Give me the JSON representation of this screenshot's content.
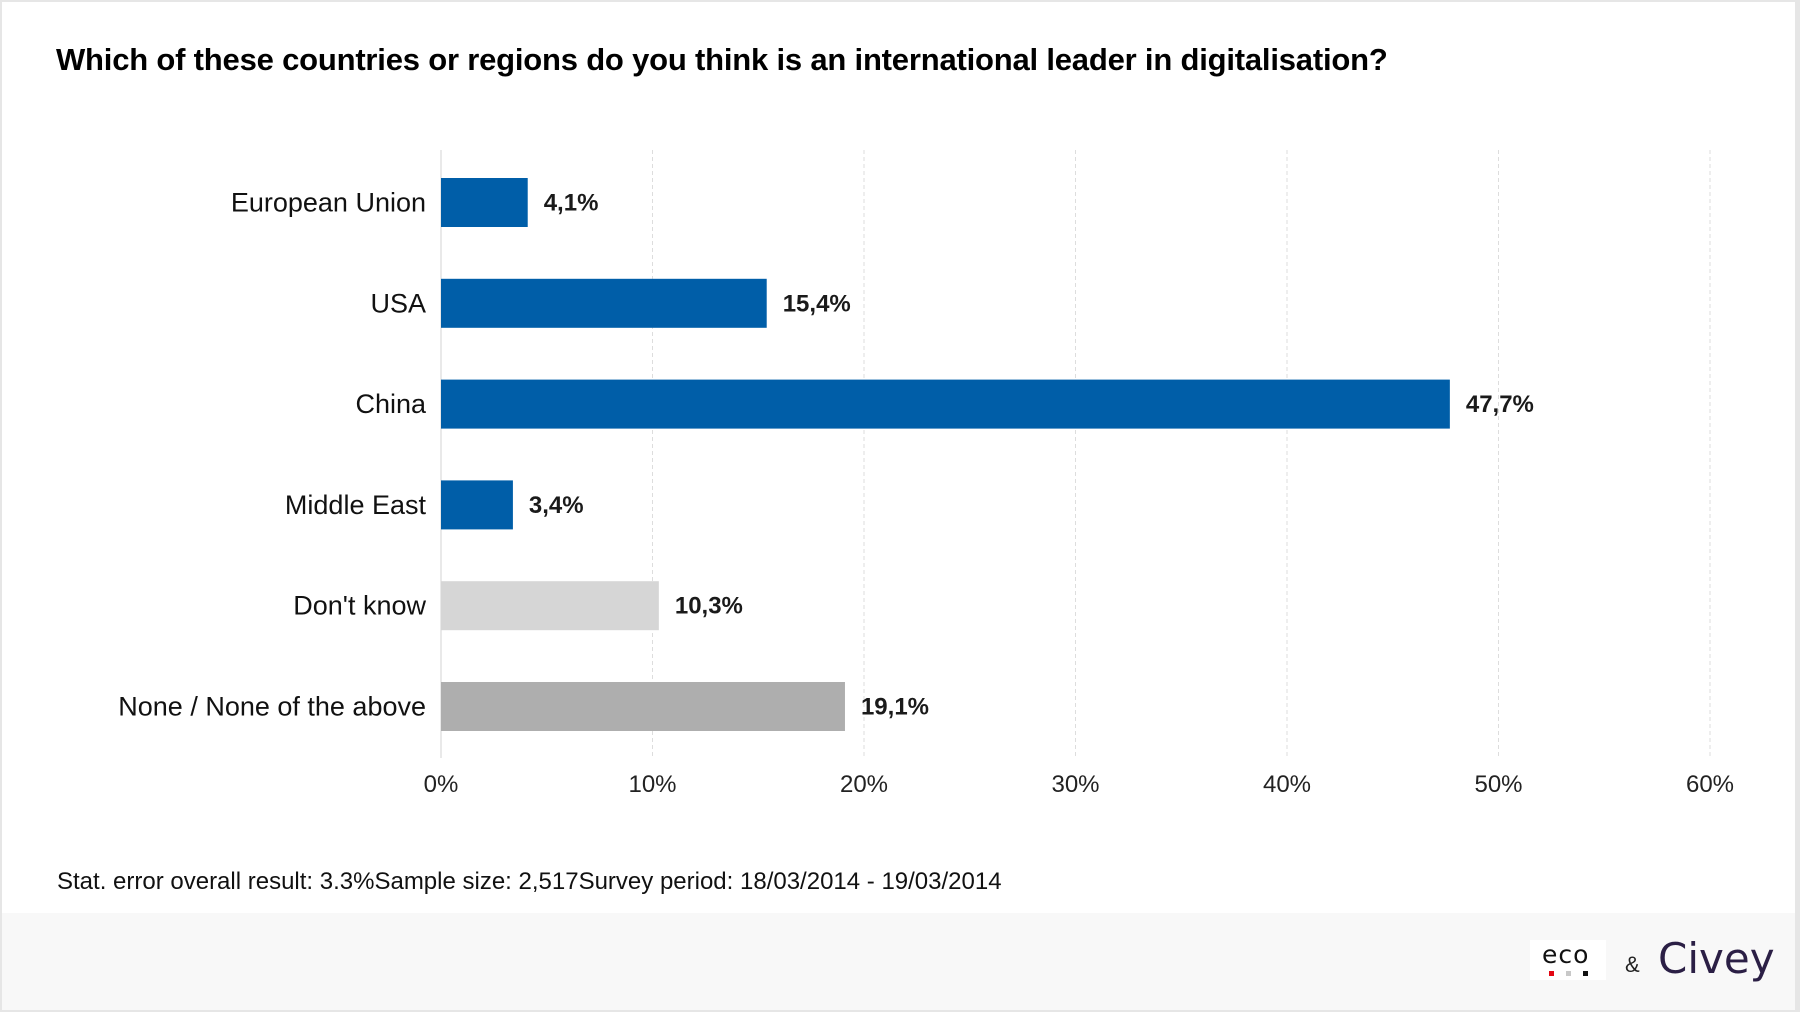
{
  "title": "Which of these countries or regions do you think is an international leader in digitalisation?",
  "footnote": "Stat. error overall result: 3.3%Sample size: 2,517Survey period: 18/03/2014 - 19/03/2014",
  "logos": {
    "eco": "eco",
    "ampersand": "&",
    "civey": "Civey",
    "eco_dot_colors": [
      "#e30613",
      "#c8c8c8",
      "#111111"
    ]
  },
  "colors": {
    "primary_bar": "#005ea8",
    "dont_know_bar": "#d6d6d6",
    "none_bar": "#aeaeae",
    "grid": "#dddddd",
    "text": "#111111"
  },
  "chart_data": {
    "type": "bar",
    "orientation": "horizontal",
    "title": "Which of these countries or regions do you think is an international leader in digitalisation?",
    "xlabel": "",
    "ylabel": "",
    "categories": [
      "European Union",
      "USA",
      "China",
      "Middle East",
      "Don't know",
      "None / None of the above"
    ],
    "values": [
      4.1,
      15.4,
      47.7,
      3.4,
      10.3,
      19.1
    ],
    "value_labels": [
      "4,1%",
      "15,4%",
      "47,7%",
      "3,4%",
      "10,3%",
      "19,1%"
    ],
    "bar_colors": [
      "#005ea8",
      "#005ea8",
      "#005ea8",
      "#005ea8",
      "#d6d6d6",
      "#aeaeae"
    ],
    "xlim": [
      0,
      60
    ],
    "x_ticks": [
      0,
      10,
      20,
      30,
      40,
      50,
      60
    ],
    "x_tick_labels": [
      "0%",
      "10%",
      "20%",
      "30%",
      "40%",
      "50%",
      "60%"
    ],
    "grid": "vertical-dashed",
    "legend": "none"
  }
}
